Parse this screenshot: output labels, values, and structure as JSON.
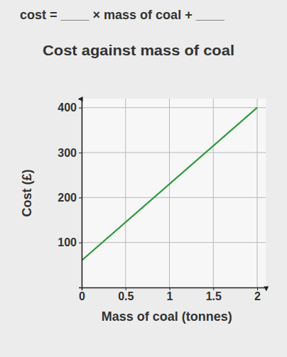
{
  "chart_data": {
    "type": "line",
    "annotations": [
      "cost = ____ × mass of coal + ____"
    ],
    "title": "Cost against mass of coal",
    "x_label": "Mass of coal (tonnes)",
    "y_label": "Cost (£)",
    "x": [
      0,
      2
    ],
    "series": [
      {
        "color": "#2f9a3f",
        "values": [
          60,
          400
        ]
      }
    ],
    "xlim": [
      0,
      2.1
    ],
    "ylim": [
      0,
      420
    ],
    "xticks": [
      0,
      0.5,
      1,
      1.5,
      2
    ],
    "yticks": [
      100,
      200,
      300,
      400
    ],
    "grid": true
  }
}
